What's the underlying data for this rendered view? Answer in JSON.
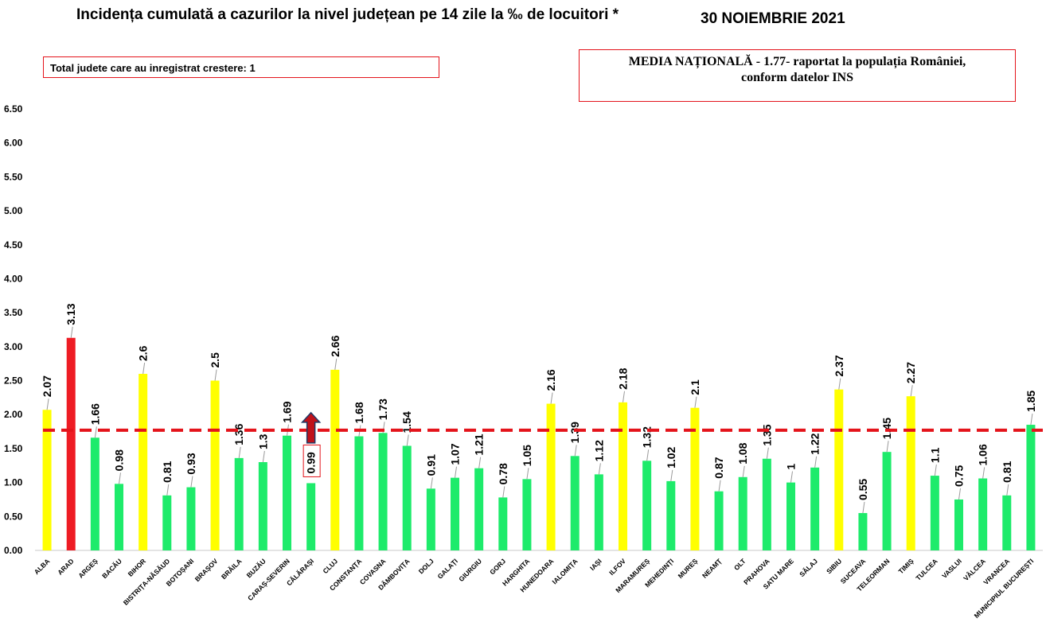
{
  "header": {
    "title": "Incidența cumulată a cazurilor la nivel județean pe 14 zile la ‰ de locuitori *",
    "date": "30 NOIEMBRIE 2021",
    "increase_note": "Total judete care au inregistrat crestere: 1",
    "national_avg_line1": "MEDIA NAȚIONALĂ  - 1.77-  raportat la populația României,",
    "national_avg_line2": "conform datelor INS"
  },
  "colors": {
    "green": "#1eeb6b",
    "yellow": "#ffff00",
    "red": "#ee1c24",
    "avg_line": "#e4141b",
    "arrow": "#c0111a",
    "arrow_outline": "#1f3864"
  },
  "chart_data": {
    "type": "bar",
    "title": "Incidența cumulată a cazurilor la nivel județean pe 14 zile la ‰ de locuitori *",
    "xlabel": "",
    "ylabel": "",
    "ylim": [
      0,
      6.5
    ],
    "yticks": [
      "0.00",
      "0.50",
      "1.00",
      "1.50",
      "2.00",
      "2.50",
      "3.00",
      "3.50",
      "4.00",
      "4.50",
      "5.00",
      "5.50",
      "6.00",
      "6.50"
    ],
    "grid": false,
    "reference_line": {
      "value": 1.77,
      "style": "dashed"
    },
    "increase_marker": {
      "category": "CĂLĂRAȘI",
      "symbol": "up-arrow"
    },
    "categories": [
      "ALBA",
      "ARAD",
      "ARGEȘ",
      "BACĂU",
      "BIHOR",
      "BISTRIȚA-NĂSĂUD",
      "BOTOȘANI",
      "BRAȘOV",
      "BRĂILA",
      "BUZĂU",
      "CARAȘ-SEVERIN",
      "CĂLĂRAȘI",
      "CLUJ",
      "CONSTANȚA",
      "COVASNA",
      "DÂMBOVIȚA",
      "DOLJ",
      "GALAȚI",
      "GIURGIU",
      "GORJ",
      "HARGHITA",
      "HUNEDOARA",
      "IALOMIȚA",
      "IAȘI",
      "ILFOV",
      "MARAMUREȘ",
      "MEHEDINȚI",
      "MUREȘ",
      "NEAMȚ",
      "OLT",
      "PRAHOVA",
      "SATU MARE",
      "SĂLAJ",
      "SIBIU",
      "SUCEAVA",
      "TELEORMAN",
      "TIMIȘ",
      "TULCEA",
      "VASLUI",
      "VÂLCEA",
      "VRANCEA",
      "MUNICIPIUL BUCUREȘTI"
    ],
    "values": [
      2.07,
      3.13,
      1.66,
      0.98,
      2.6,
      0.81,
      0.93,
      2.5,
      1.36,
      1.3,
      1.69,
      0.99,
      2.66,
      1.68,
      1.73,
      1.54,
      0.91,
      1.07,
      1.21,
      0.78,
      1.05,
      2.16,
      1.39,
      1.12,
      2.18,
      1.32,
      1.02,
      2.1,
      0.87,
      1.08,
      1.35,
      1,
      1.22,
      2.37,
      0.55,
      1.45,
      2.27,
      1.1,
      0.75,
      1.06,
      0.81,
      1.85
    ],
    "labels": [
      "2.07",
      "3.13",
      "1.66",
      "0.98",
      "2.6",
      "0.81",
      "0.93",
      "2.5",
      "1.36",
      "1.3",
      "1.69",
      "0.99",
      "2.66",
      "1.68",
      "1.73",
      "1.54",
      "0.91",
      "1.07",
      "1.21",
      "0.78",
      "1.05",
      "2.16",
      "1.39",
      "1.12",
      "2.18",
      "1.32",
      "1.02",
      "2.1",
      "0.87",
      "1.08",
      "1.35",
      "1",
      "1.22",
      "2.37",
      "0.55",
      "1.45",
      "2.27",
      "1.1",
      "0.75",
      "1.06",
      "0.81",
      "1.85"
    ],
    "bar_colors": [
      "yellow",
      "red",
      "green",
      "green",
      "yellow",
      "green",
      "green",
      "yellow",
      "green",
      "green",
      "green",
      "green",
      "yellow",
      "green",
      "green",
      "green",
      "green",
      "green",
      "green",
      "green",
      "green",
      "yellow",
      "green",
      "green",
      "yellow",
      "green",
      "green",
      "yellow",
      "green",
      "green",
      "green",
      "green",
      "green",
      "yellow",
      "green",
      "green",
      "yellow",
      "green",
      "green",
      "green",
      "green",
      "green"
    ]
  }
}
